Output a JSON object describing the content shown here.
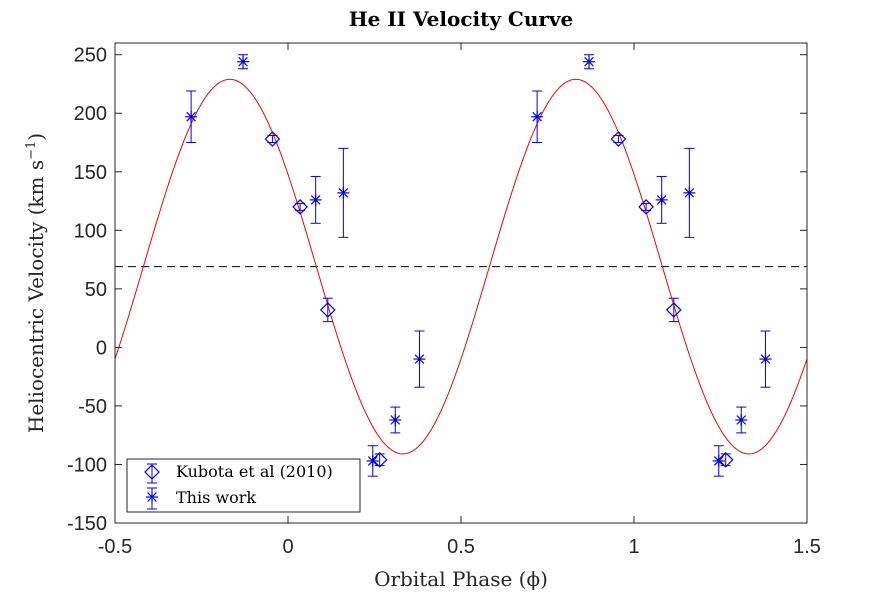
{
  "chart_data": {
    "type": "scatter",
    "title": "He II Velocity Curve",
    "xlabel": "Orbital Phase (ϕ)",
    "ylabel_main": "Heliocentric Velocity (km s",
    "ylabel_sup": "−1",
    "ylabel_end": ")",
    "xlim": [
      -0.5,
      1.5
    ],
    "ylim": [
      -150,
      260
    ],
    "xticks": [
      -0.5,
      0,
      0.5,
      1,
      1.5
    ],
    "xtick_labels": [
      "-0.5",
      "0",
      "0.5",
      "1",
      "1.5"
    ],
    "yticks": [
      -150,
      -100,
      -50,
      0,
      50,
      100,
      150,
      200,
      250
    ],
    "ytick_labels": [
      "-150",
      "-100",
      "-50",
      "0",
      "50",
      "100",
      "150",
      "200",
      "250"
    ],
    "systemic_velocity": 69,
    "fit": {
      "gamma": 69,
      "amplitude": 160,
      "peak_phase": -0.168,
      "color": "#ff0000"
    },
    "marker_color": "#0000ff",
    "series": [
      {
        "name": "Kubota et al (2010)",
        "marker": "diamond",
        "points": [
          {
            "x": -0.045,
            "y": 178,
            "err": 3
          },
          {
            "x": 0.035,
            "y": 120,
            "err": 3
          },
          {
            "x": 0.115,
            "y": 32,
            "err": 10
          },
          {
            "x": 0.265,
            "y": -96,
            "err": 5
          },
          {
            "x": 0.955,
            "y": 178,
            "err": 3
          },
          {
            "x": 1.035,
            "y": 120,
            "err": 3
          },
          {
            "x": 1.115,
            "y": 32,
            "err": 10
          },
          {
            "x": 1.265,
            "y": -96,
            "err": 5
          }
        ]
      },
      {
        "name": "This work",
        "marker": "asterisk",
        "points": [
          {
            "x": -0.28,
            "y": 197,
            "err": 22
          },
          {
            "x": -0.13,
            "y": 244,
            "err": 6
          },
          {
            "x": 0.08,
            "y": 126,
            "err": 20
          },
          {
            "x": 0.16,
            "y": 132,
            "err": 38
          },
          {
            "x": 0.245,
            "y": -97,
            "err": 13
          },
          {
            "x": 0.31,
            "y": -62,
            "err": 11
          },
          {
            "x": 0.38,
            "y": -10,
            "err": 24
          },
          {
            "x": 0.72,
            "y": 197,
            "err": 22
          },
          {
            "x": 0.87,
            "y": 244,
            "err": 6
          },
          {
            "x": 1.08,
            "y": 126,
            "err": 20
          },
          {
            "x": 1.16,
            "y": 132,
            "err": 38
          },
          {
            "x": 1.245,
            "y": -97,
            "err": 13
          },
          {
            "x": 1.31,
            "y": -62,
            "err": 11
          },
          {
            "x": 1.38,
            "y": -10,
            "err": 24
          }
        ]
      }
    ],
    "legend": {
      "placement": "bottom-left",
      "entries": [
        "Kubota et al (2010)",
        "This work"
      ]
    }
  }
}
